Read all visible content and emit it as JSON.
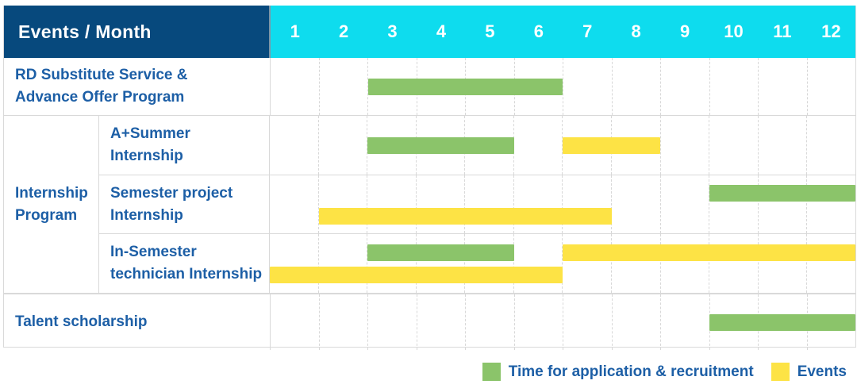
{
  "header": {
    "label": "Events / Month"
  },
  "colors": {
    "application": "#8bc46a",
    "event": "#fde345",
    "header_bg": "#07497d",
    "months_bg": "#0edcee",
    "label_text": "#1d5fa6"
  },
  "chart_data": {
    "type": "table",
    "subtype": "gantt-schedule",
    "title": "",
    "xlabel": "Month",
    "months": [
      "1",
      "2",
      "3",
      "4",
      "5",
      "6",
      "7",
      "8",
      "9",
      "10",
      "11",
      "12"
    ],
    "group_label": "Internship Program",
    "group_label_lines": [
      "Internship",
      "Program"
    ],
    "rows": [
      {
        "id": "rd-substitute",
        "label": "RD Substitute Service & Advance Offer Program",
        "label_lines": [
          "RD Substitute Service &",
          "Advance Offer Program"
        ],
        "bars": [
          {
            "kind": "application",
            "start": 3,
            "end": 6,
            "line": "middle"
          }
        ]
      },
      {
        "id": "a-plus-summer",
        "group": "Internship Program",
        "label": "A+Summer Internship",
        "label_lines": [
          "A+Summer",
          "Internship"
        ],
        "bars": [
          {
            "kind": "application",
            "start": 3,
            "end": 5,
            "line": "middle"
          },
          {
            "kind": "event",
            "start": 7,
            "end": 8,
            "line": "middle"
          }
        ]
      },
      {
        "id": "semester-project",
        "group": "Internship Program",
        "label": "Semester project Internship",
        "label_lines": [
          "Semester project",
          "Internship"
        ],
        "bars": [
          {
            "kind": "application",
            "start": 10,
            "end": 12,
            "line": "top"
          },
          {
            "kind": "event",
            "start": 2,
            "end": 7,
            "line": "bottom"
          }
        ]
      },
      {
        "id": "in-semester-technician",
        "group": "Internship Program",
        "label": "In-Semester technician Internship",
        "label_lines": [
          "In-Semester",
          "technician Internship"
        ],
        "bars": [
          {
            "kind": "application",
            "start": 3,
            "end": 5,
            "line": "top"
          },
          {
            "kind": "event",
            "start": 7,
            "end": 12,
            "line": "top"
          },
          {
            "kind": "event",
            "start": 1,
            "end": 6,
            "line": "bottom"
          }
        ]
      },
      {
        "id": "talent-scholarship",
        "label": "Talent scholarship",
        "label_lines": [
          "Talent scholarship"
        ],
        "bars": [
          {
            "kind": "application",
            "start": 10,
            "end": 12,
            "line": "middle"
          }
        ]
      }
    ],
    "legend": [
      {
        "kind": "application",
        "label": "Time for application & recruitment"
      },
      {
        "kind": "event",
        "label": "Events"
      }
    ]
  }
}
